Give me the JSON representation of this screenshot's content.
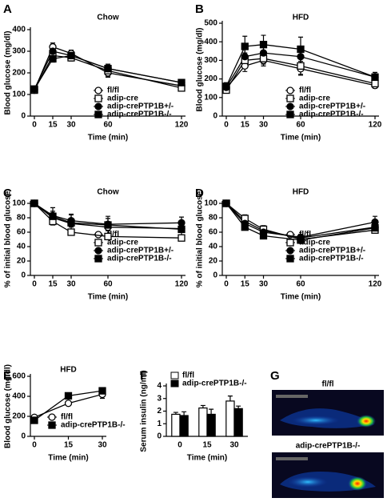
{
  "chart_data": [
    {
      "type": "line",
      "label": "A",
      "title": "Chow",
      "x_label": "Time (min)",
      "y_label": "Blood glucose (mg/dl)",
      "x": [
        0,
        15,
        30,
        60,
        120
      ],
      "xlim": [
        0,
        120
      ],
      "xticks": [
        0,
        15,
        30,
        60,
        120
      ],
      "ylim": [
        0,
        400
      ],
      "yticks": [
        0,
        100,
        200,
        300,
        400
      ],
      "series": [
        {
          "name": "fl/fl",
          "color": "#000000",
          "marker": "circle",
          "filled": false,
          "values": [
            120,
            320,
            290,
            200,
            140
          ],
          "errors": [
            8,
            18,
            15,
            20,
            12
          ]
        },
        {
          "name": "adip-cre",
          "color": "#000000",
          "marker": "square",
          "filled": false,
          "values": [
            120,
            280,
            270,
            210,
            130
          ],
          "errors": [
            8,
            15,
            15,
            25,
            10
          ]
        },
        {
          "name": "adip-crePTP1B+/-",
          "color": "#000000",
          "marker": "circle",
          "filled": true,
          "values": [
            125,
            300,
            280,
            220,
            155
          ],
          "errors": [
            8,
            20,
            18,
            20,
            12
          ]
        },
        {
          "name": "adip-crePTP1B-/-",
          "color": "#000000",
          "marker": "square",
          "filled": true,
          "values": [
            125,
            265,
            280,
            220,
            155
          ],
          "errors": [
            8,
            15,
            20,
            20,
            10
          ]
        }
      ]
    },
    {
      "type": "line",
      "label": "B",
      "title": "HFD",
      "x_label": "Time (min)",
      "y_label": "Blood glucose (mg/dl)",
      "x": [
        0,
        15,
        30,
        60,
        120
      ],
      "xlim": [
        0,
        120
      ],
      "xticks": [
        0,
        15,
        30,
        60,
        120
      ],
      "ylim": [
        0,
        500
      ],
      "yticks": [
        0,
        100,
        200,
        300,
        400,
        500
      ],
      "series": [
        {
          "name": "fl/fl",
          "color": "#000000",
          "marker": "circle",
          "filled": false,
          "values": [
            150,
            270,
            300,
            255,
            165
          ],
          "errors": [
            15,
            30,
            30,
            30,
            15
          ]
        },
        {
          "name": "adip-cre",
          "color": "#000000",
          "marker": "square",
          "filled": false,
          "values": [
            140,
            300,
            310,
            270,
            175
          ],
          "errors": [
            15,
            40,
            30,
            50,
            20
          ]
        },
        {
          "name": "adip-crePTP1B+/-",
          "color": "#000000",
          "marker": "circle",
          "filled": true,
          "values": [
            155,
            320,
            340,
            320,
            210
          ],
          "errors": [
            15,
            45,
            40,
            50,
            25
          ]
        },
        {
          "name": "adip-crePTP1B-/-",
          "color": "#000000",
          "marker": "square",
          "filled": true,
          "values": [
            160,
            375,
            385,
            360,
            210
          ],
          "errors": [
            20,
            55,
            50,
            65,
            25
          ]
        }
      ]
    },
    {
      "type": "line",
      "label": "C",
      "title": "Chow",
      "x_label": "Time (min)",
      "y_label": "% of initial blood glucose",
      "x": [
        0,
        15,
        30,
        60,
        120
      ],
      "xlim": [
        0,
        120
      ],
      "xticks": [
        0,
        15,
        30,
        60,
        120
      ],
      "ylim": [
        0,
        100
      ],
      "yticks": [
        0,
        20,
        40,
        60,
        80,
        100
      ],
      "series": [
        {
          "name": "fl/fl",
          "color": "#000000",
          "marker": "circle",
          "filled": false,
          "values": [
            100,
            80,
            72,
            67,
            65
          ],
          "errors": [
            3,
            5,
            5,
            5,
            3
          ]
        },
        {
          "name": "adip-cre",
          "color": "#000000",
          "marker": "square",
          "filled": false,
          "values": [
            100,
            75,
            60,
            54,
            52
          ],
          "errors": [
            3,
            4,
            3,
            3,
            3
          ]
        },
        {
          "name": "adip-crePTP1B+/-",
          "color": "#000000",
          "marker": "circle",
          "filled": true,
          "values": [
            100,
            83,
            76,
            71,
            73
          ],
          "errors": [
            3,
            6,
            8,
            8,
            8
          ]
        },
        {
          "name": "adip-crePTP1B-/-",
          "color": "#000000",
          "marker": "square",
          "filled": true,
          "values": [
            100,
            82,
            73,
            70,
            64
          ],
          "errors": [
            3,
            12,
            12,
            12,
            8
          ]
        }
      ]
    },
    {
      "type": "line",
      "label": "D",
      "title": "HFD",
      "x_label": "Time (min)",
      "y_label": "% of initial blood glucose",
      "x": [
        0,
        15,
        30,
        60,
        120
      ],
      "xlim": [
        0,
        120
      ],
      "xticks": [
        0,
        15,
        30,
        60,
        120
      ],
      "ylim": [
        0,
        100
      ],
      "yticks": [
        0,
        20,
        40,
        60,
        80,
        100
      ],
      "series": [
        {
          "name": "fl/fl",
          "color": "#000000",
          "marker": "circle",
          "filled": false,
          "values": [
            100,
            75,
            62,
            52,
            67
          ],
          "errors": [
            3,
            5,
            4,
            4,
            6
          ]
        },
        {
          "name": "adip-cre",
          "color": "#000000",
          "marker": "square",
          "filled": false,
          "values": [
            100,
            79,
            64,
            50,
            63
          ],
          "errors": [
            3,
            5,
            5,
            4,
            4
          ]
        },
        {
          "name": "adip-crePTP1B+/-",
          "color": "#000000",
          "marker": "circle",
          "filled": true,
          "values": [
            100,
            72,
            60,
            53,
            74
          ],
          "errors": [
            3,
            4,
            4,
            4,
            8
          ]
        },
        {
          "name": "adip-crePTP1B-/-",
          "color": "#000000",
          "marker": "square",
          "filled": true,
          "values": [
            100,
            67,
            55,
            49,
            66
          ],
          "errors": [
            3,
            3,
            3,
            4,
            5
          ]
        }
      ]
    },
    {
      "type": "line",
      "label": "E",
      "title": "HFD",
      "x_label": "Time (min)",
      "y_label": "Blood glucose (mg/dl)",
      "x": [
        0,
        15,
        30
      ],
      "xlim": [
        0,
        30
      ],
      "xticks": [
        0,
        15,
        30
      ],
      "ylim": [
        0,
        600
      ],
      "yticks": [
        0,
        200,
        400,
        600
      ],
      "series": [
        {
          "name": "fl/fl",
          "color": "#000000",
          "marker": "circle",
          "filled": false,
          "values": [
            190,
            330,
            420
          ],
          "errors": [
            20,
            20,
            40
          ]
        },
        {
          "name": "adip-crePTP1B-/-",
          "color": "#000000",
          "marker": "square",
          "filled": true,
          "values": [
            160,
            405,
            455
          ],
          "errors": [
            20,
            30,
            30
          ]
        }
      ]
    },
    {
      "type": "bar",
      "label": "F",
      "x_label": "Time (min)",
      "y_label": "Serum insulin (ng/ml)",
      "categories": [
        "0",
        "15",
        "30"
      ],
      "ylim": [
        0,
        4
      ],
      "yticks": [
        0,
        1,
        2,
        3,
        4
      ],
      "series": [
        {
          "name": "fl/fl",
          "color": "#ffffff",
          "values": [
            1.75,
            2.25,
            2.8
          ],
          "errors": [
            0.15,
            0.2,
            0.4
          ]
        },
        {
          "name": "adip-crePTP1B-/-",
          "color": "#000000",
          "values": [
            1.65,
            1.75,
            2.2
          ],
          "errors": [
            0.3,
            0.4,
            0.2
          ]
        }
      ]
    }
  ],
  "image_panel": {
    "label": "G",
    "captions": [
      "fl/fl",
      "adip-crePTP1B-/-"
    ]
  }
}
